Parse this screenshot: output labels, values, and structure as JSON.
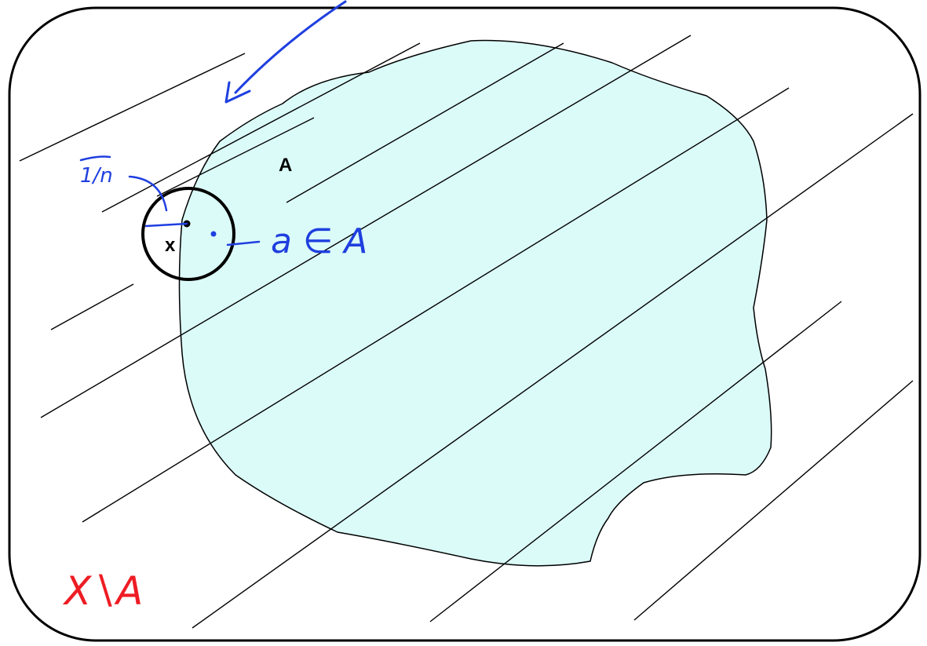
{
  "diagram": {
    "labels": {
      "set_a": "A",
      "point_x": "x",
      "radius": "1/n",
      "point_a": "a ∈ A",
      "complement": "X∖A"
    },
    "colors": {
      "background": "#ffffff",
      "frame_stroke": "#000000",
      "region_fill": "#dbfbf8",
      "region_stroke": "#000000",
      "hatch_stroke": "#000000",
      "annotation_blue": "#1f3fe0",
      "annotation_red": "#ee1c24"
    }
  }
}
